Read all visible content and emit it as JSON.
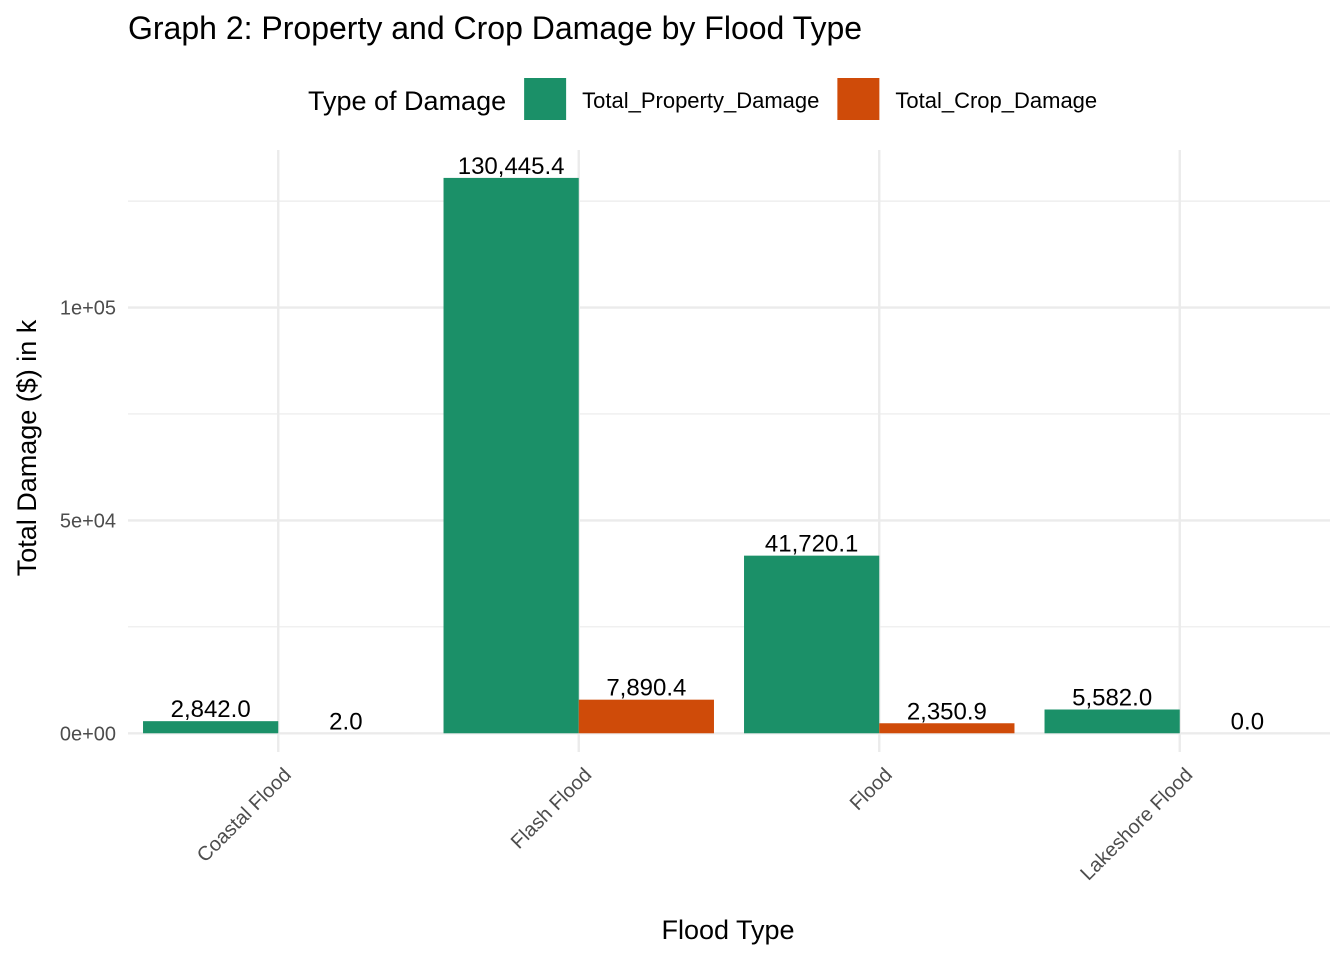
{
  "chart_data": {
    "type": "bar",
    "title": "Graph 2: Property and Crop Damage by Flood Type",
    "xlabel": "Flood Type",
    "ylabel": "Total Damage ($) in k",
    "legend": {
      "title": "Type of Damage",
      "placement": "top"
    },
    "categories": [
      "Coastal Flood",
      "Flash Flood",
      "Flood",
      "Lakeshore Flood"
    ],
    "series": [
      {
        "name": "Total_Property_Damage",
        "color": "#1b9068",
        "values": [
          2842.0,
          130445.4,
          41720.1,
          5582.0
        ],
        "labels": [
          "2,842.0",
          "130,445.4",
          "41,720.1",
          "5,582.0"
        ]
      },
      {
        "name": "Total_Crop_Damage",
        "color": "#cf4b09",
        "values": [
          2.0,
          7890.4,
          2350.9,
          0.0
        ],
        "labels": [
          "2.0",
          "7,890.4",
          "2,350.9",
          "0.0"
        ]
      }
    ],
    "y_ticks": [
      0,
      50000,
      100000
    ],
    "y_tick_labels": [
      "0e+00",
      "5e+04",
      "1e+05"
    ],
    "ylim": [
      -4400,
      137000
    ],
    "grid": true
  }
}
